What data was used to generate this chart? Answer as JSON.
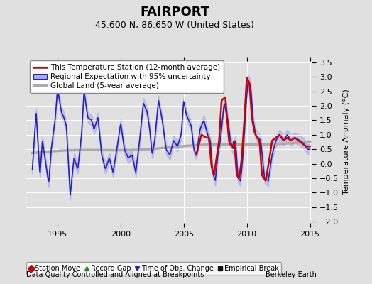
{
  "title": "FAIRPORT",
  "subtitle": "45.600 N, 86.650 W (United States)",
  "ylabel": "Temperature Anomaly (°C)",
  "footer_left": "Data Quality Controlled and Aligned at Breakpoints",
  "footer_right": "Berkeley Earth",
  "xlim": [
    1992.5,
    2015.5
  ],
  "ylim": [
    -2.2,
    3.7
  ],
  "yticks": [
    -2,
    -1.5,
    -1,
    -0.5,
    0,
    0.5,
    1,
    1.5,
    2,
    2.5,
    3,
    3.5
  ],
  "xticks": [
    1995,
    2000,
    2005,
    2010,
    2015
  ],
  "bg_color": "#e0e0e0",
  "plot_bg_color": "#e0e0e0",
  "grid_color": "#ffffff",
  "station_color": "#cc0000",
  "regional_color": "#2222bb",
  "regional_fill_color": "#aaaaee",
  "global_color": "#aaaaaa",
  "station_lw": 1.8,
  "regional_lw": 1.2,
  "global_lw": 2.5,
  "legend_items": [
    {
      "label": "This Temperature Station (12-month average)",
      "color": "#cc0000",
      "lw": 1.8
    },
    {
      "label": "Regional Expectation with 95% uncertainty",
      "color": "#2222bb",
      "lw": 1.2
    },
    {
      "label": "Global Land (5-year average)",
      "color": "#aaaaaa",
      "lw": 2.5
    }
  ],
  "marker_legend": [
    {
      "label": "Station Move",
      "color": "#cc0000",
      "marker": "D"
    },
    {
      "label": "Record Gap",
      "color": "#228822",
      "marker": "^"
    },
    {
      "label": "Time of Obs. Change",
      "color": "#2222bb",
      "marker": "v"
    },
    {
      "label": "Empirical Break",
      "color": "#111111",
      "marker": "s"
    }
  ],
  "title_fontsize": 13,
  "subtitle_fontsize": 9,
  "tick_fontsize": 8,
  "legend_fontsize": 7.5,
  "marker_legend_fontsize": 7,
  "footer_fontsize": 7
}
